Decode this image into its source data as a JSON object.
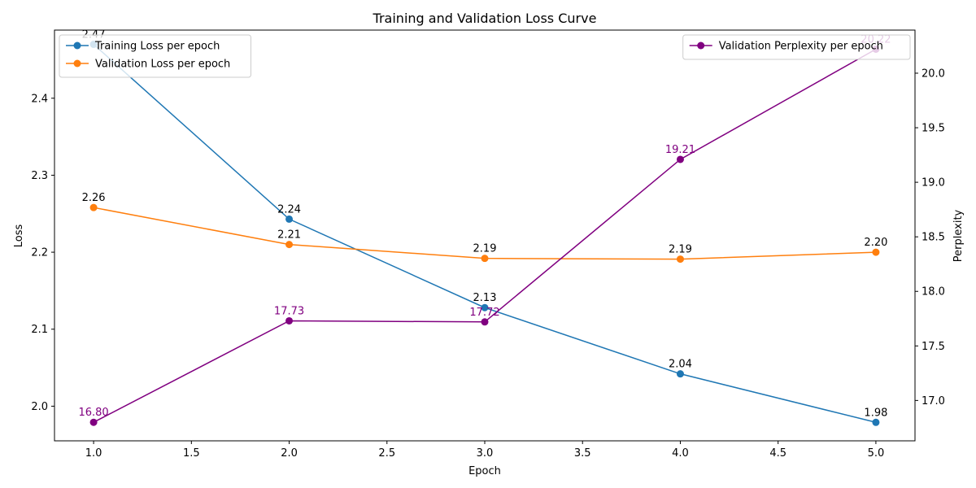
{
  "chart_data": {
    "type": "line",
    "title": "Training and Validation Loss Curve",
    "xlabel": "Epoch",
    "ylabel": "Loss",
    "y2label": "Perplexity",
    "x": [
      1,
      2,
      3,
      4,
      5
    ],
    "xlim": [
      0.8,
      5.2
    ],
    "ylim": [
      1.955,
      2.4885
    ],
    "y2lim": [
      16.63,
      20.395
    ],
    "xticks": [
      "1.0",
      "1.5",
      "2.0",
      "2.5",
      "3.0",
      "3.5",
      "4.0",
      "4.5",
      "5.0"
    ],
    "yticks": [
      "2.0",
      "2.1",
      "2.2",
      "2.3",
      "2.4"
    ],
    "y2ticks": [
      "17.0",
      "17.5",
      "18.0",
      "18.5",
      "19.0",
      "19.5",
      "20.0"
    ],
    "grid": false,
    "series": [
      {
        "name": "Training Loss per epoch",
        "axis": "left",
        "color": "#1f77b4",
        "label_color": "#000000",
        "values": [
          2.47,
          2.243,
          2.128,
          2.042,
          1.979
        ],
        "labels": [
          "2.47",
          "2.24",
          "2.13",
          "2.04",
          "1.98"
        ]
      },
      {
        "name": "Validation Loss per epoch",
        "axis": "left",
        "color": "#ff7f0e",
        "label_color": "#000000",
        "values": [
          2.258,
          2.21,
          2.192,
          2.191,
          2.2
        ],
        "labels": [
          "2.26",
          "2.21",
          "2.19",
          "2.19",
          "2.20"
        ]
      },
      {
        "name": "Validation Perplexity per epoch",
        "axis": "right",
        "color": "#800080",
        "label_color": "#800080",
        "values": [
          16.8,
          17.73,
          17.72,
          19.21,
          20.22
        ],
        "labels": [
          "16.80",
          "17.73",
          "17.72",
          "19.21",
          "20.22"
        ]
      }
    ],
    "legends": [
      {
        "placement": "top-left",
        "series": [
          0,
          1
        ]
      },
      {
        "placement": "top-right",
        "series": [
          2
        ]
      }
    ]
  }
}
